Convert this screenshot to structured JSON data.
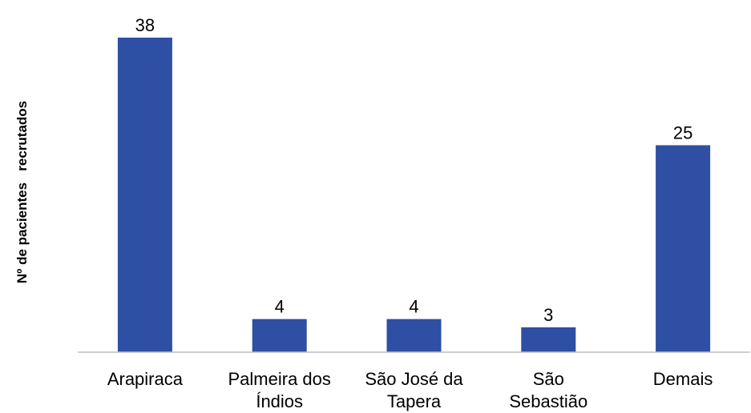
{
  "chart_data": {
    "type": "bar",
    "title": "",
    "xlabel": "",
    "ylabel": "Nº de pacientes   recrutados",
    "categories": [
      [
        "Arapiraca"
      ],
      [
        "Palmeira dos",
        "Índios"
      ],
      [
        "São José da",
        "Tapera"
      ],
      [
        "São",
        "Sebastião"
      ],
      [
        "Demais"
      ]
    ],
    "values": [
      38,
      4,
      4,
      3,
      25
    ],
    "ylim": [
      0,
      38
    ],
    "grid": false,
    "legend": "none",
    "bar_color": "#2e4fa3"
  }
}
